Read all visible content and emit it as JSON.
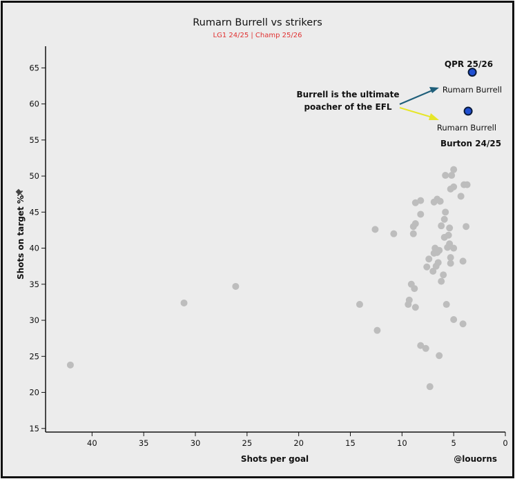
{
  "chart_data": {
    "type": "scatter",
    "title": "Rumarn Burrell vs strikers",
    "subtitle": "LG1 24/25 | Champ 25/26",
    "xlabel": "Shots per goal",
    "ylabel": "Shots on target %",
    "xlim": [
      44.5,
      0
    ],
    "ylim": [
      14.5,
      68
    ],
    "x_inverted": true,
    "x_ticks": [
      40,
      35,
      30,
      25,
      20,
      15,
      10,
      5,
      0
    ],
    "y_ticks": [
      15,
      20,
      25,
      30,
      35,
      40,
      45,
      50,
      55,
      60,
      65
    ],
    "grid": false,
    "colors": {
      "points": "#bdbdbd",
      "highlight": "#1f4fd1",
      "highlight_edge": "#0a1a3a",
      "subtitle": "#e03030",
      "arrow_teal": "#1f5f7a",
      "arrow_yellow": "#e6e62a",
      "axis": "#111111",
      "background": "#ececec"
    },
    "series": [
      {
        "name": "Strikers",
        "points": [
          {
            "x": 42.1,
            "y": 23.8
          },
          {
            "x": 31.1,
            "y": 32.4
          },
          {
            "x": 26.1,
            "y": 34.7
          },
          {
            "x": 14.1,
            "y": 32.2
          },
          {
            "x": 12.6,
            "y": 42.6
          },
          {
            "x": 12.4,
            "y": 28.6
          },
          {
            "x": 10.8,
            "y": 42.0
          },
          {
            "x": 9.3,
            "y": 32.8
          },
          {
            "x": 9.4,
            "y": 32.2
          },
          {
            "x": 9.1,
            "y": 35.0
          },
          {
            "x": 8.8,
            "y": 34.4
          },
          {
            "x": 8.7,
            "y": 31.8
          },
          {
            "x": 8.9,
            "y": 43.0
          },
          {
            "x": 8.7,
            "y": 43.4
          },
          {
            "x": 8.9,
            "y": 42.0
          },
          {
            "x": 8.7,
            "y": 46.3
          },
          {
            "x": 8.2,
            "y": 46.6
          },
          {
            "x": 8.2,
            "y": 44.7
          },
          {
            "x": 8.2,
            "y": 26.5
          },
          {
            "x": 7.7,
            "y": 26.1
          },
          {
            "x": 7.3,
            "y": 20.8
          },
          {
            "x": 7.6,
            "y": 37.4
          },
          {
            "x": 7.4,
            "y": 38.5
          },
          {
            "x": 7.0,
            "y": 36.8
          },
          {
            "x": 6.9,
            "y": 39.3
          },
          {
            "x": 6.8,
            "y": 40.0
          },
          {
            "x": 6.6,
            "y": 39.4
          },
          {
            "x": 6.5,
            "y": 38.0
          },
          {
            "x": 6.7,
            "y": 37.5
          },
          {
            "x": 6.4,
            "y": 39.7
          },
          {
            "x": 6.2,
            "y": 35.4
          },
          {
            "x": 6.0,
            "y": 36.3
          },
          {
            "x": 6.4,
            "y": 25.1
          },
          {
            "x": 6.9,
            "y": 46.4
          },
          {
            "x": 6.6,
            "y": 46.8
          },
          {
            "x": 6.3,
            "y": 46.5
          },
          {
            "x": 6.2,
            "y": 43.1
          },
          {
            "x": 5.9,
            "y": 44.0
          },
          {
            "x": 5.8,
            "y": 45.0
          },
          {
            "x": 5.9,
            "y": 41.5
          },
          {
            "x": 5.5,
            "y": 41.8
          },
          {
            "x": 5.4,
            "y": 42.8
          },
          {
            "x": 5.6,
            "y": 40.1
          },
          {
            "x": 5.4,
            "y": 40.6
          },
          {
            "x": 5.0,
            "y": 40.0
          },
          {
            "x": 5.3,
            "y": 38.7
          },
          {
            "x": 5.3,
            "y": 37.9
          },
          {
            "x": 5.7,
            "y": 32.2
          },
          {
            "x": 5.0,
            "y": 30.1
          },
          {
            "x": 4.1,
            "y": 29.5
          },
          {
            "x": 4.1,
            "y": 38.2
          },
          {
            "x": 3.8,
            "y": 43.0
          },
          {
            "x": 4.3,
            "y": 47.2
          },
          {
            "x": 5.0,
            "y": 48.5
          },
          {
            "x": 5.3,
            "y": 48.2
          },
          {
            "x": 5.2,
            "y": 50.1
          },
          {
            "x": 5.0,
            "y": 50.9
          },
          {
            "x": 5.8,
            "y": 50.1
          },
          {
            "x": 4.0,
            "y": 48.8
          },
          {
            "x": 3.7,
            "y": 48.8
          }
        ]
      },
      {
        "name": "Rumarn Burrell",
        "highlight": true,
        "points": [
          {
            "x": 3.2,
            "y": 64.4,
            "label": "Rumarn Burrell",
            "season": "QPR 25/26"
          },
          {
            "x": 3.6,
            "y": 59.0,
            "label": "Rumarn Burrell",
            "season": "Burton 24/25"
          }
        ]
      }
    ],
    "annotations": {
      "text_line1": "Burrell is the ultimate",
      "text_line2": "poacher of the EFL"
    },
    "credit": "@louorns"
  }
}
